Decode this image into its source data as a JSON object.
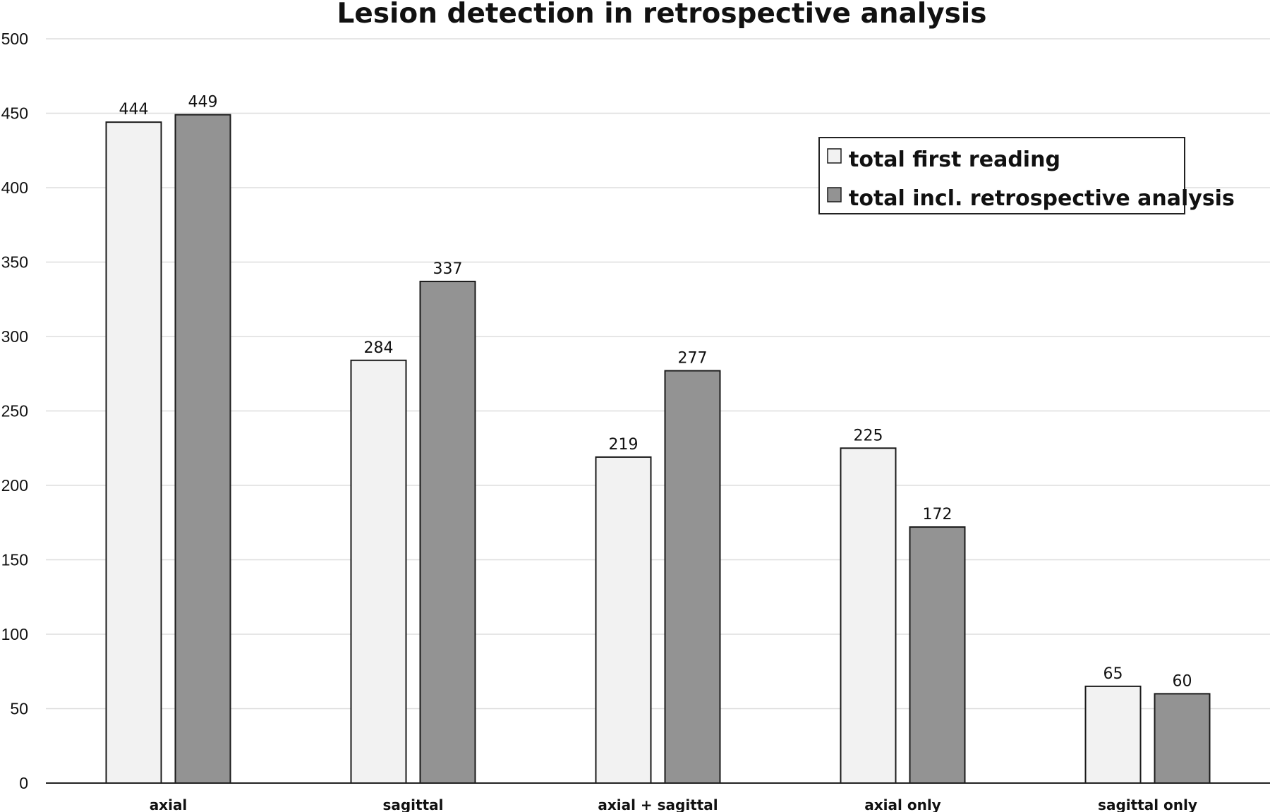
{
  "chart_data": {
    "type": "bar",
    "title": "Lesion detection in retrospective analysis",
    "xlabel": "",
    "ylabel": "",
    "categories": [
      "axial",
      "sagittal",
      "axial + sagittal",
      "axial only",
      "sagittal only"
    ],
    "series": [
      {
        "name": "total first reading",
        "color": "#f2f2f2",
        "values": [
          444,
          284,
          219,
          225,
          65
        ]
      },
      {
        "name": "total incl. retrospective analysis",
        "color": "#939393",
        "values": [
          449,
          337,
          277,
          172,
          60
        ]
      }
    ],
    "ylim": [
      0,
      500
    ],
    "yticks": [
      "0",
      "50",
      "100",
      "150",
      "200",
      "250",
      "300",
      "350",
      "400",
      "450",
      "500"
    ],
    "grid": true,
    "legend_position": "top-right",
    "data_labels": true
  },
  "colors": {
    "gridline": "#dddddd",
    "axis": "#222222",
    "bar_stroke": "#1a1a1a"
  }
}
